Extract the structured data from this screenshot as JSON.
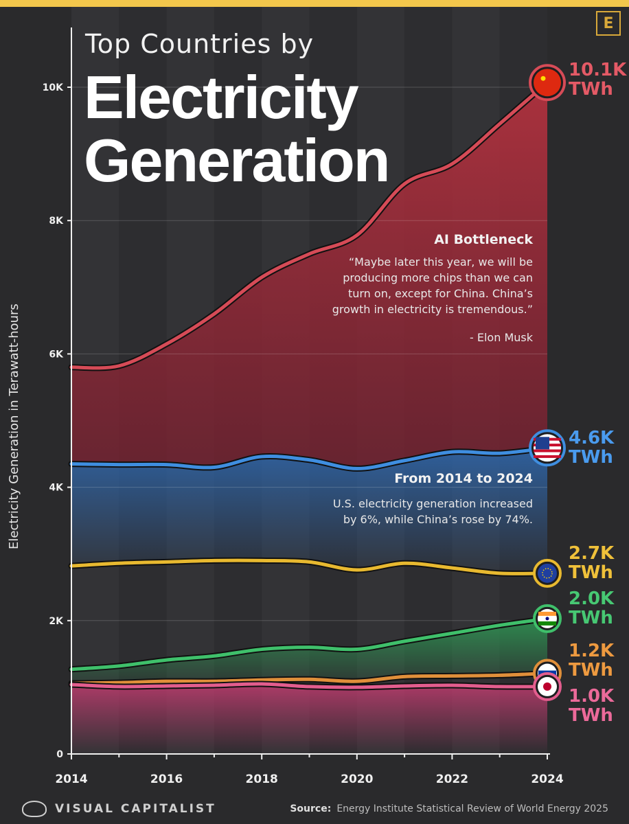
{
  "header": {
    "title_sub": "Top Countries by",
    "title_main_1": "Electricity",
    "title_main_2": "Generation",
    "brand_badge": "E"
  },
  "colors": {
    "china": "#d64b57",
    "usa": "#3f8ee0",
    "eu": "#e8b930",
    "india": "#3fc06b",
    "russia": "#e08f3a",
    "japan": "#e35d8e"
  },
  "chart_data": {
    "type": "area",
    "title": "Top Countries by Electricity Generation",
    "ylabel": "Electricity Generation in Terawatt-hours",
    "ylim": [
      0,
      10500
    ],
    "y_ticks": [
      "0",
      "2K",
      "4K",
      "6K",
      "8K",
      "10K"
    ],
    "y_tick_values": [
      0,
      2000,
      4000,
      6000,
      8000,
      10000
    ],
    "x": [
      2014,
      2015,
      2016,
      2017,
      2018,
      2019,
      2020,
      2021,
      2022,
      2023,
      2024
    ],
    "x_ticks": [
      "2014",
      "2016",
      "2018",
      "2020",
      "2022",
      "2024"
    ],
    "series": [
      {
        "name": "China",
        "color": "#d64b57",
        "values": [
          5800,
          5820,
          6150,
          6600,
          7150,
          7500,
          7780,
          8550,
          8850,
          9450,
          10070
        ]
      },
      {
        "name": "United States",
        "color": "#3f8ee0",
        "values": [
          4350,
          4340,
          4340,
          4300,
          4460,
          4410,
          4280,
          4400,
          4530,
          4510,
          4590
        ]
      },
      {
        "name": "European Union",
        "color": "#e8b930",
        "values": [
          2820,
          2860,
          2880,
          2900,
          2900,
          2880,
          2760,
          2860,
          2790,
          2710,
          2710
        ]
      },
      {
        "name": "India",
        "color": "#3fc06b",
        "values": [
          1270,
          1320,
          1410,
          1470,
          1570,
          1600,
          1570,
          1690,
          1810,
          1930,
          2030
        ]
      },
      {
        "name": "Russia",
        "color": "#e08f3a",
        "values": [
          1060,
          1070,
          1090,
          1090,
          1110,
          1120,
          1090,
          1160,
          1170,
          1180,
          1210
        ]
      },
      {
        "name": "Japan",
        "color": "#e35d8e",
        "values": [
          1040,
          1010,
          1020,
          1030,
          1050,
          1010,
          1000,
          1020,
          1030,
          1010,
          1010
        ]
      }
    ],
    "end_labels": [
      {
        "value": "10.1K",
        "unit": "TWh",
        "color": "#e45a66",
        "flag": "china"
      },
      {
        "value": "4.6K",
        "unit": "TWh",
        "color": "#4a9bee",
        "flag": "usa"
      },
      {
        "value": "2.7K",
        "unit": "TWh",
        "color": "#f0c13a",
        "flag": "eu"
      },
      {
        "value": "2.0K",
        "unit": "TWh",
        "color": "#47c873",
        "flag": "india"
      },
      {
        "value": "1.2K",
        "unit": "TWh",
        "color": "#ee9a40",
        "flag": "russia"
      },
      {
        "value": "1.0K",
        "unit": "TWh",
        "color": "#ec6a9a",
        "flag": "japan"
      }
    ],
    "annotations": [
      {
        "heading": "AI Bottleneck",
        "lines": [
          "“Maybe later this year, we will be",
          "producing more chips than we can",
          "turn on, except for China. China’s",
          "growth in electricity is tremendous.”"
        ],
        "attribution": "- Elon Musk"
      },
      {
        "heading": "From 2014 to 2024",
        "lines": [
          "U.S. electricity generation increased",
          "by 6%, while China’s rose by 74%."
        ]
      }
    ]
  },
  "footer": {
    "brand": "VISUAL CAPITALIST",
    "source_label": "Source:",
    "source_text": "Energy Institute Statistical Review of World Energy 2025"
  }
}
